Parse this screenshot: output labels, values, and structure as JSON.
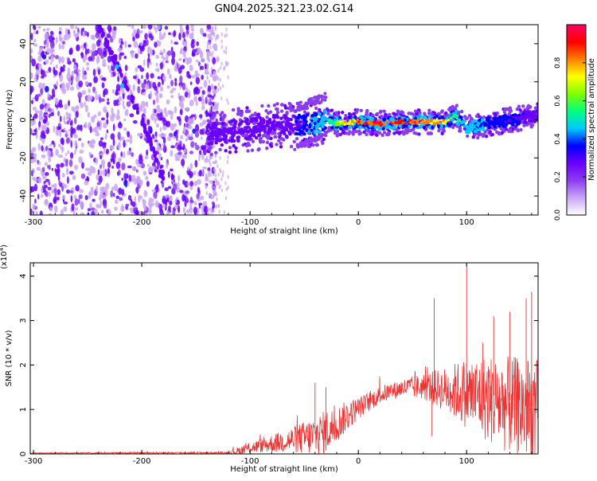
{
  "title": "GN04.2025.321.23.02.G14",
  "chart_data": [
    {
      "type": "heatmap",
      "title": "GN04.2025.321.23.02.G14",
      "xlabel": "Height of straight line (km)",
      "ylabel": "Frequency (Hz)",
      "xlim": [
        -303,
        166
      ],
      "ylim": [
        -50,
        50
      ],
      "xticks": [
        -300,
        -200,
        -100,
        0,
        100
      ],
      "yticks": [
        -40,
        -20,
        0,
        20,
        40
      ],
      "colorbar": {
        "label": "Normalized spectral amplitude",
        "range": [
          0,
          1
        ],
        "ticks": [
          0,
          0.2,
          0.4,
          0.6,
          0.8
        ],
        "colors": [
          "#ffffff",
          "#c9a6f5",
          "#8c3cf0",
          "#6a00ff",
          "#0000ff",
          "#00c8ff",
          "#00ff80",
          "#7fff00",
          "#ffff00",
          "#ff8000",
          "#ff0000",
          "#ff0066"
        ]
      },
      "features": [
        {
          "name": "noise region",
          "x_range": [
            -303,
            -130
          ],
          "freq_range": [
            -50,
            50
          ],
          "amplitude": 0.1
        },
        {
          "name": "diagonal streak",
          "x": [
            -240,
            -220,
            -200,
            -180
          ],
          "freq": [
            50,
            25,
            0,
            -30
          ],
          "amplitude": 0.25
        },
        {
          "name": "signal ridge",
          "x": [
            -140,
            -120,
            -100,
            -80,
            -60,
            -40,
            -30,
            -20,
            0,
            20,
            40,
            60,
            80,
            90,
            100,
            120,
            140,
            160
          ],
          "freq": [
            -8,
            -6,
            -5,
            -3,
            -3,
            -2,
            0,
            -2,
            -1,
            -2,
            -1,
            -1,
            -1,
            2,
            -4,
            -2,
            0,
            2
          ],
          "amplitude": [
            0.25,
            0.3,
            0.3,
            0.3,
            0.3,
            0.45,
            0.5,
            0.7,
            0.9,
            0.95,
            0.95,
            0.9,
            0.8,
            0.6,
            0.5,
            0.4,
            0.35,
            0.3
          ]
        }
      ]
    },
    {
      "type": "line",
      "xlabel": "Height of straight line (km)",
      "ylabel": "SNR (10 * v/v)",
      "y_multiplier": "(x10",
      "y_multiplier_exp": "4",
      "y_multiplier_close": ")",
      "xlim": [
        -303,
        166
      ],
      "ylim": [
        0,
        4.3
      ],
      "xticks": [
        -300,
        -200,
        -100,
        0,
        100
      ],
      "yticks": [
        0,
        1,
        2,
        3,
        4
      ],
      "color": "#ee3333",
      "envelope": {
        "x": [
          -303,
          -120,
          -110,
          -100,
          -80,
          -60,
          -40,
          -30,
          -20,
          -10,
          0,
          20,
          40,
          60,
          80,
          100,
          120,
          140,
          160,
          166
        ],
        "mean": [
          0.02,
          0.03,
          0.08,
          0.15,
          0.25,
          0.35,
          0.45,
          0.55,
          0.7,
          0.9,
          1.05,
          1.35,
          1.5,
          1.55,
          1.5,
          1.45,
          1.35,
          1.2,
          1.1,
          1.05
        ],
        "noise": [
          0.01,
          0.02,
          0.1,
          0.12,
          0.2,
          0.3,
          0.45,
          0.5,
          0.4,
          0.35,
          0.25,
          0.2,
          0.2,
          0.3,
          0.5,
          0.8,
          1.0,
          1.1,
          1.2,
          1.2
        ]
      },
      "spikes": [
        {
          "x": -40,
          "value": 1.6
        },
        {
          "x": -30,
          "value": 1.5
        },
        {
          "x": 70,
          "value": 3.5
        },
        {
          "x": 68,
          "value": 0.4
        },
        {
          "x": 100,
          "value": 4.3
        },
        {
          "x": 115,
          "value": 2.5
        },
        {
          "x": 125,
          "value": 3.1
        },
        {
          "x": 140,
          "value": 3.2
        },
        {
          "x": 155,
          "value": 3.5
        },
        {
          "x": 160,
          "value": 3.65
        }
      ]
    }
  ]
}
